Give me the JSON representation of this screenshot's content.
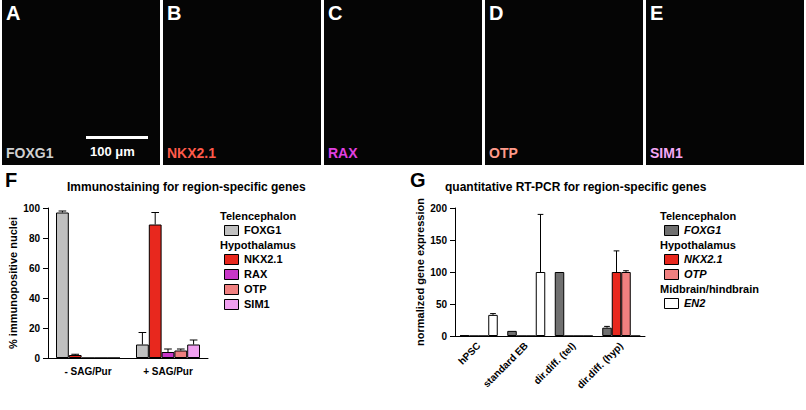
{
  "image_panels": [
    {
      "letter": "A",
      "label": "FOXG1",
      "color": "#d0d0d0"
    },
    {
      "letter": "B",
      "label": "NKX2.1",
      "color": "#ff5a4a"
    },
    {
      "letter": "C",
      "label": "RAX",
      "color": "#e040e0"
    },
    {
      "letter": "D",
      "label": "OTP",
      "color": "#ff9a8a"
    },
    {
      "letter": "E",
      "label": "SIM1",
      "color": "#f5a8f5"
    }
  ],
  "scale_bar": "100 μm",
  "chart_data": [
    {
      "letter": "F",
      "type": "bar",
      "title": "Immunostaining for region-specific genes",
      "y_label": "% immunopositive nuclei",
      "categories": [
        "- SAG/Pur",
        "+ SAG/Pur"
      ],
      "series": [
        {
          "name": "FOXG1",
          "group": "Telencephalon",
          "color": "#c0c0c0",
          "values": [
            97,
            9
          ],
          "errors": [
            1,
            8
          ]
        },
        {
          "name": "NKX2.1",
          "group": "Hypothalamus",
          "color": "#e8281e",
          "values": [
            2,
            89
          ],
          "errors": [
            0.5,
            8
          ]
        },
        {
          "name": "RAX",
          "group": "Hypothalamus",
          "color": "#c837c8",
          "values": [
            0,
            4
          ],
          "errors": [
            null,
            2
          ]
        },
        {
          "name": "OTP",
          "group": "Hypothalamus",
          "color": "#f08080",
          "values": [
            0,
            5
          ],
          "errors": [
            null,
            1
          ]
        },
        {
          "name": "SIM1",
          "group": "Hypothalamus",
          "color": "#f0a0f0",
          "values": [
            0,
            9
          ],
          "errors": [
            null,
            3
          ]
        }
      ],
      "ylim": [
        0,
        100
      ],
      "yticks": [
        0,
        20,
        40,
        60,
        80,
        100
      ],
      "grid": false,
      "legend": "right"
    },
    {
      "letter": "G",
      "type": "bar",
      "title": "quantitative RT-PCR for region-specific genes",
      "y_label": "normalized gene expression",
      "categories": [
        "hPSC",
        "standard EB",
        "dir.diff. (tel)",
        "dir.diff. (hyp)"
      ],
      "series": [
        {
          "name": "FOXG1",
          "group": "Telencephalon",
          "color": "#707070",
          "values": [
            1,
            8,
            100,
            13
          ],
          "errors": [
            null,
            null,
            null,
            2
          ]
        },
        {
          "name": "NKX2.1",
          "group": "Hypothalamus",
          "color": "#e8281e",
          "values": [
            0,
            0,
            0,
            100
          ],
          "errors": [
            null,
            null,
            null,
            33
          ]
        },
        {
          "name": "OTP",
          "group": "Hypothalamus",
          "color": "#f08080",
          "values": [
            0,
            0,
            0,
            100
          ],
          "errors": [
            null,
            null,
            null,
            2
          ]
        },
        {
          "name": "EN2",
          "group": "Midbrain/hindbrain",
          "color": "#ffffff",
          "values": [
            33,
            100,
            0,
            0
          ],
          "errors": [
            2,
            90,
            null,
            null
          ]
        }
      ],
      "ylim": [
        0,
        200
      ],
      "yticks": [
        0,
        50,
        100,
        150,
        200
      ],
      "grid": false,
      "legend": "right"
    }
  ]
}
